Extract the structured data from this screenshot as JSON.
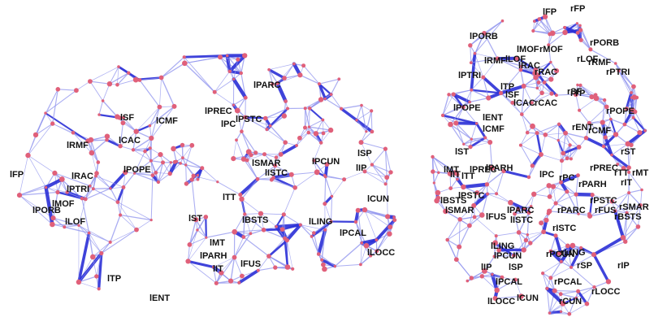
{
  "colors": {
    "background": "#ffffff",
    "edge_light": "#8f93ee",
    "edge_strong": "#2a2fd6",
    "node": "#e0607a",
    "label": "#111111"
  },
  "lateral_view": {
    "labels": [
      "lFP",
      "lPORB",
      "lMOF",
      "lPTRI",
      "lRAC",
      "lLOF",
      "lRMF",
      "lCAC",
      "lPOPE",
      "lSF",
      "lCMF",
      "lPREC",
      "lPC",
      "lPSTC",
      "lPARC",
      "lSMAR",
      "lISTC",
      "lPCUN",
      "lSP",
      "lIP",
      "lCUN",
      "lLING",
      "lPCAL",
      "lLOCC",
      "lTT",
      "lST",
      "lBSTS",
      "lMT",
      "lPARH",
      "lIT",
      "lFUS",
      "lTP",
      "lENT"
    ]
  },
  "axial_view": {
    "labels": [
      "lFP",
      "rFP",
      "lPORB",
      "lMOF",
      "rMOF",
      "rPORB",
      "lRMF",
      "lLOF",
      "lRAC",
      "rRAC",
      "rLOF",
      "rRMF",
      "lPTRI",
      "rPTRI",
      "lTP",
      "lSF",
      "rSF",
      "lCAC",
      "rCAC",
      "rTP",
      "lPOPE",
      "rPOPE",
      "lENT",
      "lCMF",
      "rENT",
      "rCMF",
      "lST",
      "rST",
      "lMT",
      "lPREC",
      "lTT",
      "lPARH",
      "lPC",
      "rPC",
      "rPREC",
      "rTT",
      "rMT",
      "rIT",
      "lIT",
      "rPARH",
      "lBSTS",
      "lPSTC",
      "rPSTC",
      "lSMAR",
      "rSMAR",
      "lFUS",
      "lPARC",
      "rPARC",
      "rFUS",
      "rBSTS",
      "lISTC",
      "rISTC",
      "lLING",
      "rLING",
      "lPCUN",
      "rPCUN",
      "lIP",
      "lSP",
      "rSP",
      "rIP",
      "lPCAL",
      "rPCAL",
      "lLOCC",
      "lCUN",
      "rCUN",
      "rLOCC"
    ]
  }
}
